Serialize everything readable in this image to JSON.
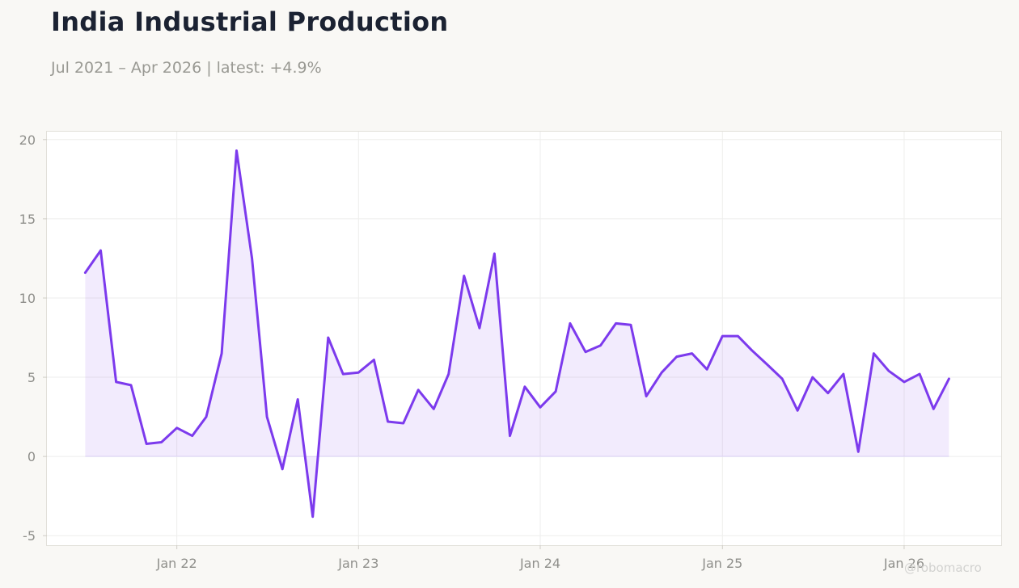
{
  "title": "India Industrial Production",
  "subtitle": "Jul 2021 – Apr 2026 | latest: +4.9%",
  "watermark": "@robomacro",
  "colors": {
    "line": "#7c3aed",
    "area_fill": "#7c3aed",
    "grid": "#eeeeec",
    "zero_line": "#e4dff5",
    "plot_bg": "#ffffff",
    "page_bg": "#f9f8f5"
  },
  "chart_data": {
    "type": "area",
    "title": "India Industrial Production",
    "subtitle": "Jul 2021 – Apr 2026 | latest: +4.9%",
    "xlabel": "",
    "ylabel": "",
    "x_start": "2021-07",
    "x_end": "2026-04",
    "xlim": [
      "2021-04-15",
      "2026-07-15"
    ],
    "ylim": [
      -5.6,
      20.5
    ],
    "y_ticks": [
      -5,
      0,
      5,
      10,
      15,
      20
    ],
    "x_ticks": [
      {
        "date": "2022-01",
        "label": "Jan 22"
      },
      {
        "date": "2023-01",
        "label": "Jan 23"
      },
      {
        "date": "2024-01",
        "label": "Jan 24"
      },
      {
        "date": "2025-01",
        "label": "Jan 25"
      },
      {
        "date": "2026-01",
        "label": "Jan 26"
      }
    ],
    "grid": true,
    "legend": "none",
    "series": [
      {
        "x": [
          "2021-07",
          "2021-08",
          "2021-09",
          "2021-10",
          "2021-11",
          "2021-12",
          "2022-01",
          "2022-02",
          "2022-03",
          "2022-04",
          "2022-05",
          "2022-06",
          "2022-07",
          "2022-08",
          "2022-09",
          "2022-10",
          "2022-11",
          "2022-12",
          "2023-01",
          "2023-02",
          "2023-03",
          "2023-04",
          "2023-05",
          "2023-06",
          "2023-07",
          "2023-08",
          "2023-09",
          "2023-10",
          "2023-11",
          "2023-12",
          "2024-01",
          "2024-02",
          "2024-03",
          "2024-04",
          "2024-05",
          "2024-06",
          "2024-07",
          "2024-08",
          "2024-09",
          "2024-10",
          "2024-11",
          "2024-12",
          "2025-01",
          "2025-02",
          "2025-03",
          "2025-04",
          "2025-05",
          "2025-06",
          "2025-07",
          "2025-08",
          "2025-09",
          "2025-10",
          "2025-11",
          "2025-12",
          "2026-01",
          "2026-02",
          "2026-03",
          "2026-04"
        ],
        "values": [
          11.6,
          13.0,
          4.7,
          4.5,
          0.8,
          0.9,
          1.8,
          1.3,
          2.5,
          6.5,
          19.3,
          12.5,
          2.5,
          -0.8,
          3.6,
          -3.8,
          7.5,
          5.2,
          5.3,
          6.1,
          2.2,
          2.1,
          4.2,
          3.0,
          5.2,
          11.4,
          8.1,
          12.8,
          1.3,
          4.4,
          3.1,
          4.1,
          8.4,
          6.6,
          7.0,
          8.4,
          8.3,
          3.8,
          5.3,
          6.3,
          6.5,
          5.5,
          7.6,
          7.6,
          6.7,
          5.8,
          4.9,
          2.9,
          5.0,
          4.0,
          5.2,
          0.3,
          6.5,
          5.4,
          4.7,
          5.2,
          3.0,
          4.9
        ]
      }
    ]
  }
}
